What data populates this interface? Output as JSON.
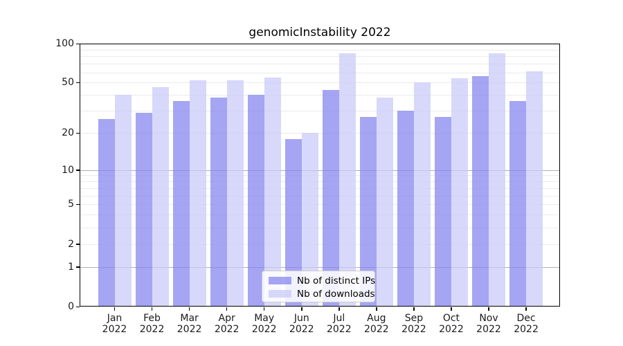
{
  "chart_data": {
    "type": "bar",
    "title": "genomicInstability 2022",
    "categories": [
      "Jan",
      "Feb",
      "Mar",
      "Apr",
      "May",
      "Jun",
      "Jul",
      "Aug",
      "Sep",
      "Oct",
      "Nov",
      "Dec"
    ],
    "year_label": "2022",
    "series": [
      {
        "name": "Nb of distinct IPs",
        "color": "rgba(130,130,240,0.72)",
        "values": [
          26,
          29,
          36,
          38,
          40,
          18,
          44,
          27,
          30,
          27,
          56,
          36
        ]
      },
      {
        "name": "Nb of downloads",
        "color": "rgba(201,201,248,0.72)",
        "values": [
          40,
          46,
          52,
          52,
          55,
          20,
          84,
          38,
          50,
          54,
          84,
          61
        ]
      }
    ],
    "xlabel": "",
    "ylabel": "",
    "yscale": "log1p",
    "ylim": [
      0,
      100
    ],
    "yticks": [
      {
        "label": "100",
        "value": 100,
        "grid": "none"
      },
      {
        "label": "50",
        "value": 50,
        "grid": "minor"
      },
      {
        "label": "20",
        "value": 20,
        "grid": "minor"
      },
      {
        "label": "10",
        "value": 10,
        "grid": "major"
      },
      {
        "label": "5",
        "value": 5,
        "grid": "minor"
      },
      {
        "label": "2",
        "value": 2,
        "grid": "minor"
      },
      {
        "label": "1",
        "value": 1,
        "grid": "major"
      },
      {
        "label": "0",
        "value": 0,
        "grid": "none"
      }
    ],
    "minor_gridlines": [
      3,
      4,
      6,
      7,
      8,
      9,
      30,
      40,
      60,
      70,
      80,
      90
    ],
    "grid": true,
    "legend_position": "lower center"
  },
  "colors": {
    "frame": "#000000",
    "grid_minor": "#ebebeb",
    "grid_major": "#b0b0b0",
    "text": "#1a1a1a",
    "legend_border": "#cccccc"
  }
}
